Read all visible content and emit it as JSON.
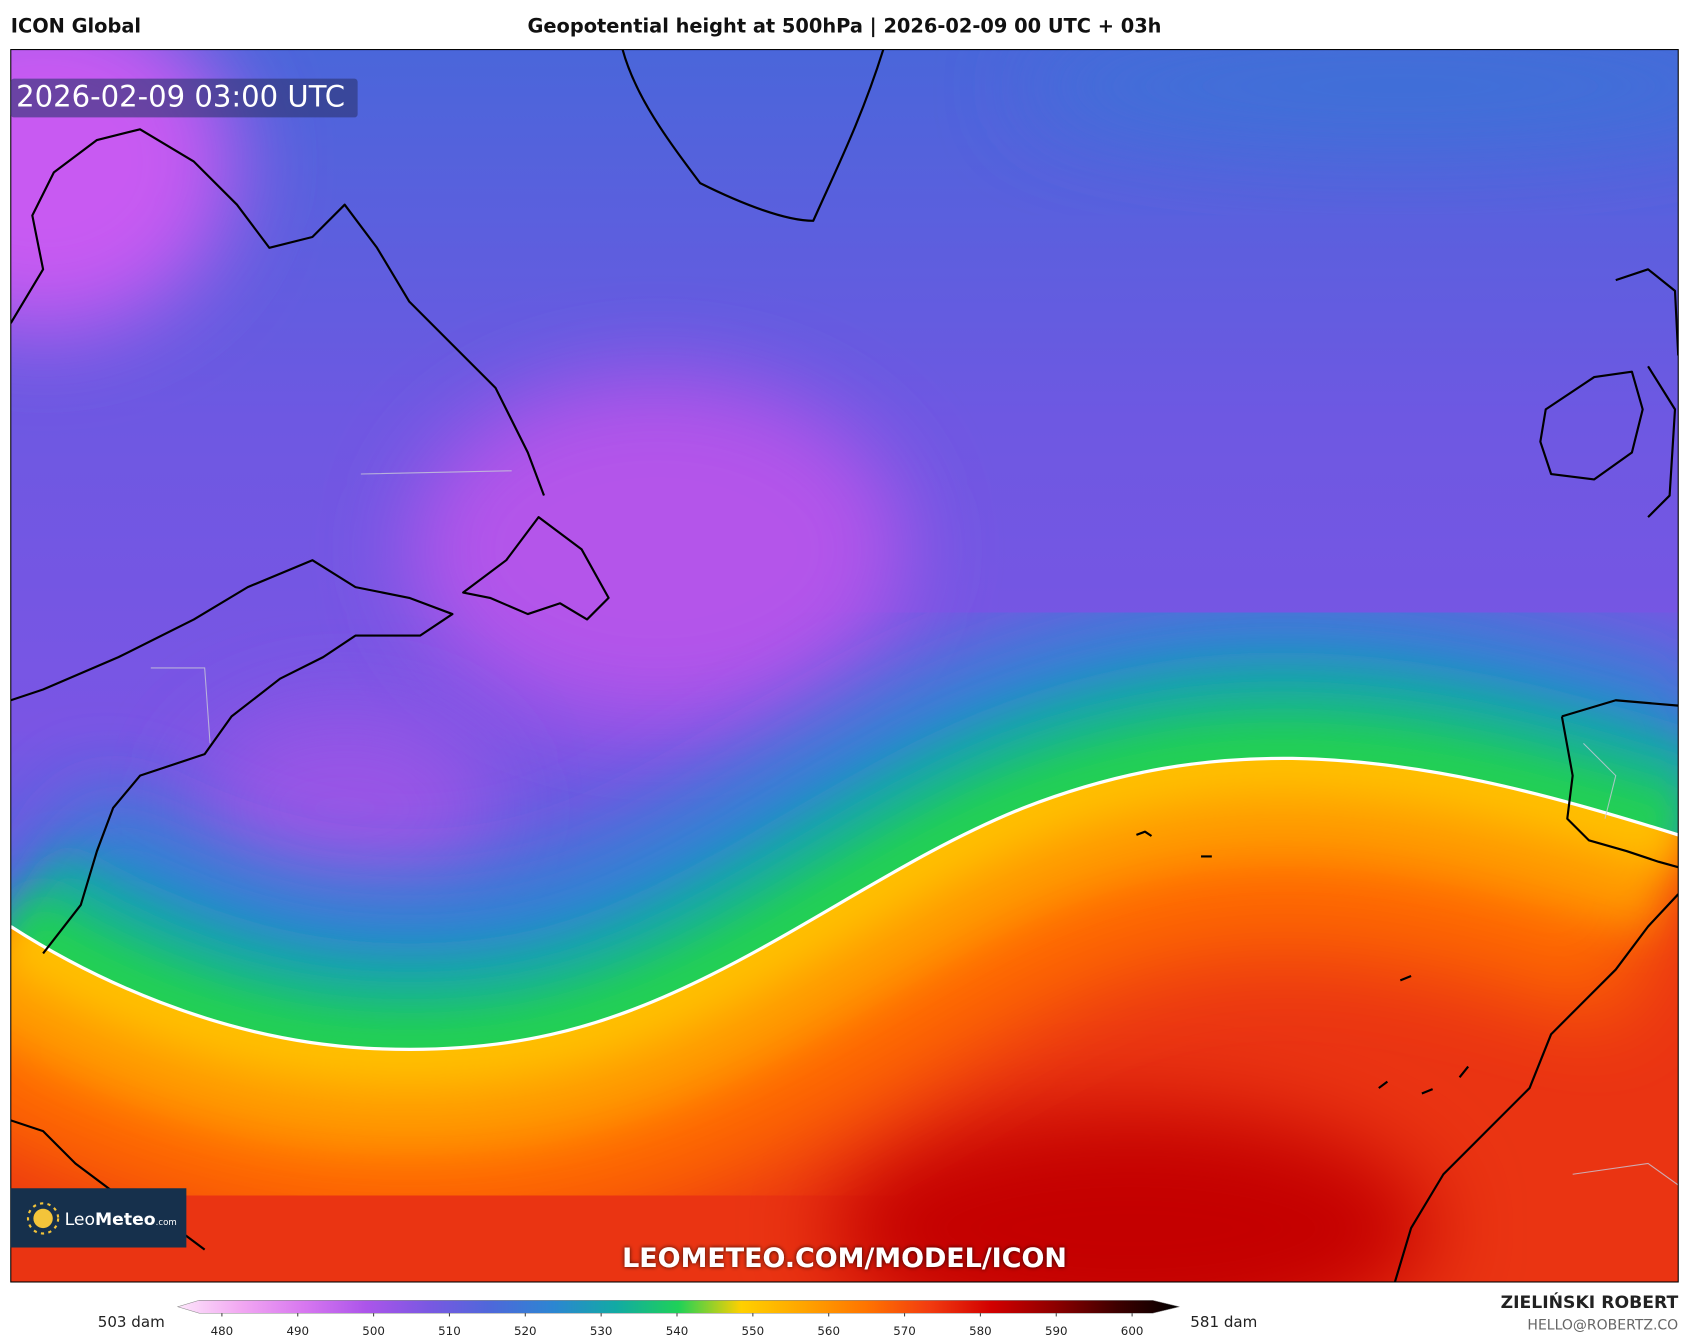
{
  "header": {
    "model": "ICON Global",
    "title": "Geopotential height at 500hPa | 2026-02-09 00 UTC + 03h"
  },
  "map": {
    "timestamp": "2026-02-09 03:00 UTC",
    "watermark": "LEOMETEO.COM/MODEL/ICON",
    "logo": {
      "leo": "Leo",
      "meteo": "Meteo",
      "suffix": ".com"
    }
  },
  "legend": {
    "min_label": "503 dam",
    "max_label": "581 dam",
    "ticks": [
      480,
      490,
      500,
      510,
      520,
      530,
      540,
      550,
      560,
      570,
      580,
      590,
      600
    ],
    "colors": [
      "#fde6fb",
      "#f2a8f2",
      "#d878f0",
      "#ac55ea",
      "#7a58e2",
      "#4e68da",
      "#2c86d2",
      "#12aaa4",
      "#1fd158",
      "#ffd000",
      "#ffa400",
      "#ff7400",
      "#f23c10",
      "#d20000",
      "#8e0000",
      "#3e0000",
      "#000000"
    ]
  },
  "credits": {
    "author": "ZIELIŃSKI ROBERT",
    "email": "HELLO@ROBERTZ.CO"
  }
}
